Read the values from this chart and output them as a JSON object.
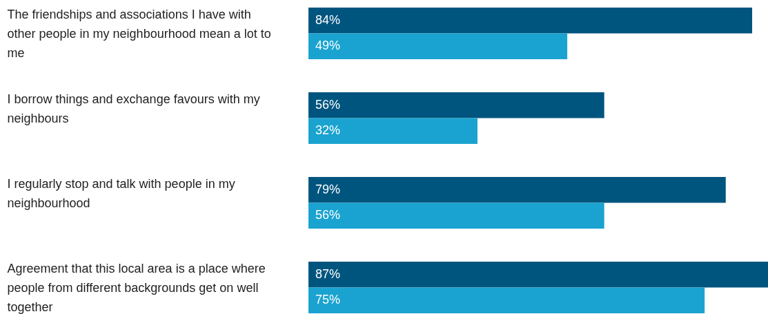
{
  "chart_data": {
    "type": "bar",
    "orientation": "horizontal",
    "categories": [
      "The friendships and associations I have with other people in my neighbourhood mean a lot to me",
      "I borrow things and exchange favours with my neighbours",
      "I regularly stop and talk with people in my neighbourhood",
      "Agreement that this local area is a place where people from different backgrounds get on well together"
    ],
    "series": [
      {
        "color": "#00557f",
        "values": [
          84,
          56,
          79,
          87
        ],
        "value_labels": [
          "84%",
          "56%",
          "79%",
          "87%"
        ]
      },
      {
        "color": "#1aa3d0",
        "values": [
          49,
          32,
          56,
          75
        ],
        "value_labels": [
          "49%",
          "32%",
          "56%",
          "75%"
        ]
      }
    ],
    "xlim": [
      0,
      87
    ],
    "tick_labels": "y"
  }
}
